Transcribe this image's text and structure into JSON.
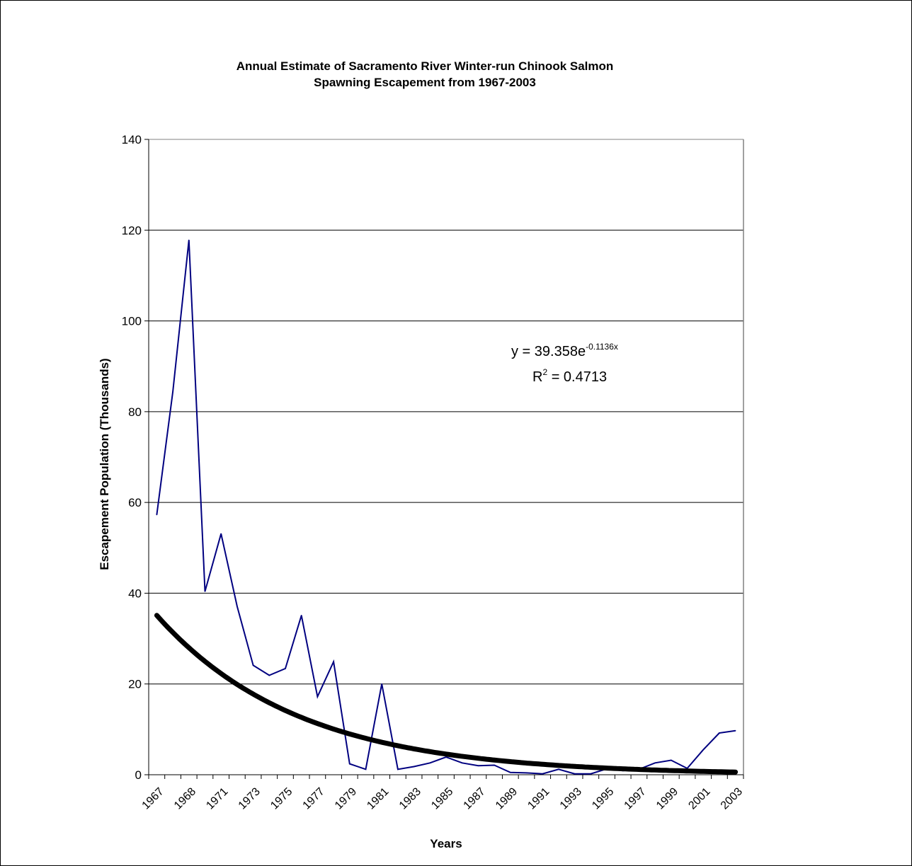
{
  "chart_data": {
    "type": "line",
    "title_line1": "Annual Estimate of Sacramento River Winter-run Chinook Salmon",
    "title_line2": "Spawning Escapement from 1967-2003",
    "xlabel": "Years",
    "ylabel": "Escapement Population (Thousands)",
    "ylim": [
      0,
      140
    ],
    "y_ticks": [
      "0",
      "20",
      "40",
      "60",
      "80",
      "100",
      "120",
      "140"
    ],
    "x_tick_labels": [
      "1967",
      "1968",
      "1971",
      "1973",
      "1975",
      "1977",
      "1979",
      "1981",
      "1983",
      "1985",
      "1987",
      "1989",
      "1991",
      "1993",
      "1995",
      "1997",
      "1999",
      "2001",
      "2003"
    ],
    "grid": "horizontal",
    "series": [
      {
        "color": "#000080",
        "values": [
          57.3,
          84.4,
          117.8,
          40.4,
          53.1,
          37.1,
          24.1,
          21.9,
          23.4,
          35.1,
          17.2,
          24.9,
          2.4,
          1.2,
          20.0,
          1.2,
          1.8,
          2.6,
          3.9,
          2.6,
          2.0,
          2.1,
          0.5,
          0.4,
          0.2,
          1.2,
          0.2,
          0.2,
          1.3,
          0.9,
          1.2,
          2.6,
          3.2,
          1.4,
          5.5,
          9.2,
          9.7
        ]
      }
    ],
    "trendline": {
      "type": "exponential",
      "a": 39.358,
      "b": -0.1136,
      "color": "#000000",
      "equation_base": "y = 39.358e",
      "equation_exp": "-0.1136x",
      "r2_prefix": "R",
      "r2_sup": "2",
      "r2_value": " = 0.4713"
    }
  }
}
